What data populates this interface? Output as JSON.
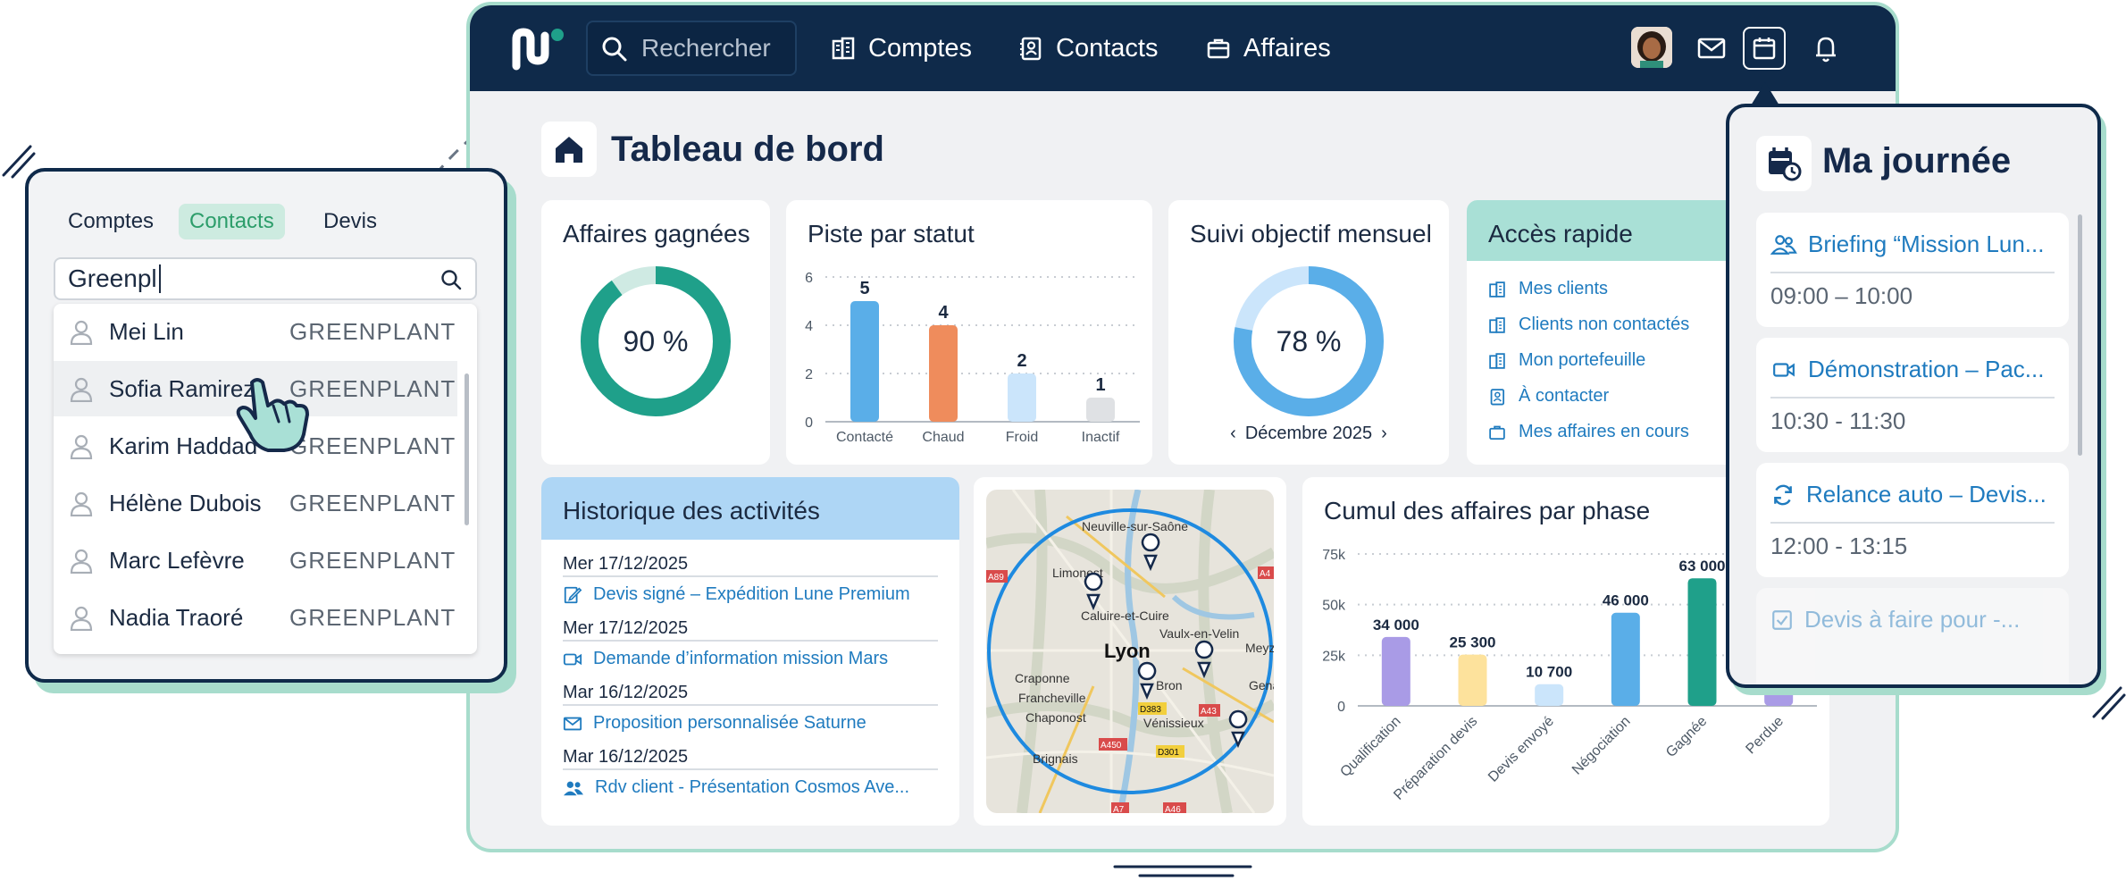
{
  "nav": {
    "search_placeholder": "Rechercher",
    "links": [
      "Comptes",
      "Contacts",
      "Affaires"
    ]
  },
  "page": {
    "title": "Tableau de bord"
  },
  "won": {
    "title": "Affaires gagnées",
    "value_label": "90 %",
    "value": 0.9
  },
  "goal": {
    "title": "Suivi objectif mensuel",
    "value_label": "78 %",
    "value": 0.78,
    "month": "Décembre 2025"
  },
  "quick": {
    "title": "Accès rapide",
    "items": [
      "Mes clients",
      "Clients non contactés",
      "Mon portefeuille",
      "À contacter",
      "Mes affaires en cours"
    ]
  },
  "history": {
    "title": "Historique des activités",
    "entries": [
      {
        "date": "Mer 17/12/2025",
        "label": "Devis signé – Expédition Lune Premium"
      },
      {
        "date": "Mer 17/12/2025",
        "label": "Demande d’information mission Mars"
      },
      {
        "date": "Mar 16/12/2025",
        "label": "Proposition personnalisée Saturne"
      },
      {
        "date": "Mar 16/12/2025",
        "label": "Rdv client - Présentation Cosmos Ave..."
      }
    ]
  },
  "map": {
    "city": "Lyon",
    "places": [
      "Neuville-sur-Saône",
      "Limonest",
      "Caluire-et-Cuire",
      "Vaulx-en-Velin",
      "Meyzi",
      "Craponne",
      "Francheville",
      "Chaponost",
      "Bron",
      "Gena",
      "Vénissieux",
      "Brignais"
    ],
    "roads": [
      "A89",
      "A4",
      "D383",
      "A43",
      "A450",
      "D301",
      "A7",
      "A46"
    ]
  },
  "left_panel": {
    "tabs": [
      "Comptes",
      "Contacts",
      "Devis"
    ],
    "query": "Greenpl",
    "results": [
      {
        "name": "Mei Lin",
        "company": "GREENPLANT"
      },
      {
        "name": "Sofia Ramirez",
        "company": "GREENPLANT"
      },
      {
        "name": "Karim Haddad",
        "company": "GREENPLANT"
      },
      {
        "name": "Hélène Dubois",
        "company": "GREENPLANT"
      },
      {
        "name": "Marc Lefèvre",
        "company": "GREENPLANT"
      },
      {
        "name": "Nadia Traoré",
        "company": "GREENPLANT"
      }
    ]
  },
  "day": {
    "title": "Ma journée",
    "events": [
      {
        "title": "Briefing “Mission Lun...",
        "time": "09:00 – 10:00"
      },
      {
        "title": "Démonstration – Pac...",
        "time": "10:30 - 11:30"
      },
      {
        "title": "Relance auto – Devis...",
        "time": "12:00 - 13:15"
      },
      {
        "title": "Devis à faire pour -...",
        "time": ""
      }
    ]
  },
  "colors": {
    "navy": "#0f2a4a",
    "teal": "#1fa08a",
    "blue": "#5aaee8",
    "link": "#1f7bbf",
    "mint": "#a7dccc"
  },
  "chart_data": [
    {
      "type": "bar",
      "title": "Piste par statut",
      "categories": [
        "Contacté",
        "Chaud",
        "Froid",
        "Inactif"
      ],
      "values": [
        5,
        4,
        2,
        1
      ],
      "value_labels": [
        "5",
        "4",
        "2",
        "1"
      ],
      "colors": [
        "#5aaee8",
        "#ef8c5c",
        "#cbe5fb",
        "#dfe1e4"
      ],
      "yticks": [
        "0",
        "2",
        "4",
        "6"
      ],
      "ylim": [
        0,
        6
      ]
    },
    {
      "type": "bar",
      "title": "Cumul des affaires par phase",
      "categories": [
        "Qualification",
        "Préparation devis",
        "Devis envoyé",
        "Négociation",
        "Gagnée",
        "Perdue"
      ],
      "values": [
        34000,
        25300,
        10700,
        46000,
        63000,
        8000
      ],
      "value_labels": [
        "34 000",
        "25 300",
        "10 700",
        "46 000",
        "63 000",
        ""
      ],
      "colors": [
        "#a99be6",
        "#fde29c",
        "#cbe5fb",
        "#5aaee8",
        "#1fa08a",
        "#a99be6"
      ],
      "yticks": [
        "0",
        "25k",
        "50k",
        "75k"
      ],
      "ylim": [
        0,
        75000
      ]
    }
  ]
}
